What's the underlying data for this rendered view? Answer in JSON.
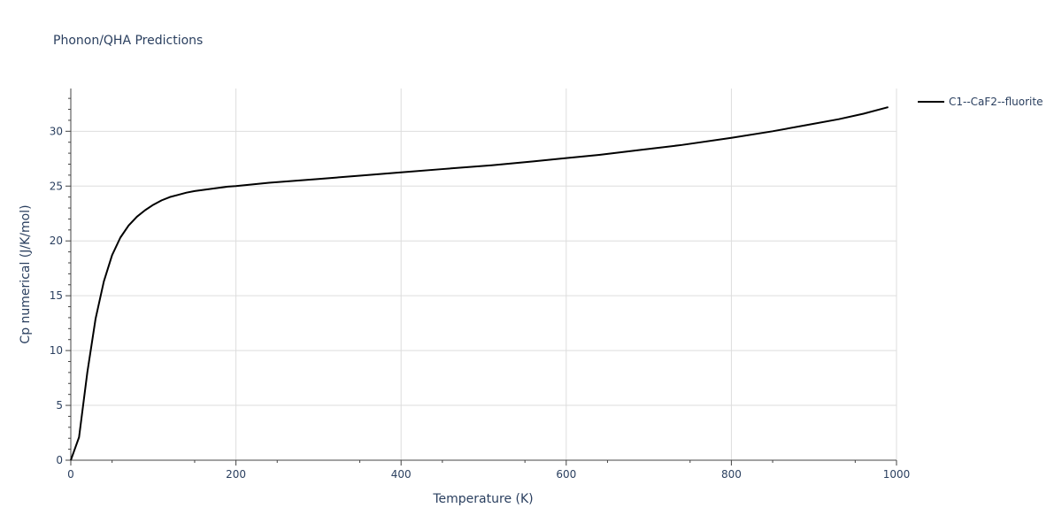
{
  "chart_data": {
    "type": "line",
    "title": "Phonon/QHA Predictions",
    "xlabel": "Temperature (K)",
    "ylabel": "Cp numerical (J/K/mol)",
    "xlim": [
      0,
      1000
    ],
    "ylim": [
      0,
      33.9
    ],
    "xticks": [
      0,
      200,
      400,
      600,
      800,
      1000
    ],
    "yticks": [
      0,
      5,
      10,
      15,
      20,
      25,
      30
    ],
    "grid": true,
    "legend_position": "top-right",
    "series": [
      {
        "name": "C1--CaF2--fluorite",
        "color": "#000000",
        "x": [
          0,
          10,
          20,
          30,
          40,
          50,
          60,
          70,
          80,
          90,
          100,
          110,
          120,
          130,
          140,
          150,
          160,
          170,
          180,
          190,
          200,
          240,
          300,
          350,
          400,
          450,
          510,
          560,
          600,
          640,
          690,
          740,
          800,
          850,
          890,
          930,
          960,
          990
        ],
        "y": [
          0,
          2.1,
          8.0,
          12.9,
          16.3,
          18.7,
          20.3,
          21.4,
          22.2,
          22.8,
          23.3,
          23.7,
          24.0,
          24.2,
          24.4,
          24.55,
          24.65,
          24.75,
          24.85,
          24.95,
          25.0,
          25.3,
          25.65,
          25.95,
          26.25,
          26.55,
          26.9,
          27.25,
          27.55,
          27.85,
          28.3,
          28.75,
          29.4,
          30.0,
          30.55,
          31.1,
          31.6,
          32.2
        ]
      }
    ]
  }
}
